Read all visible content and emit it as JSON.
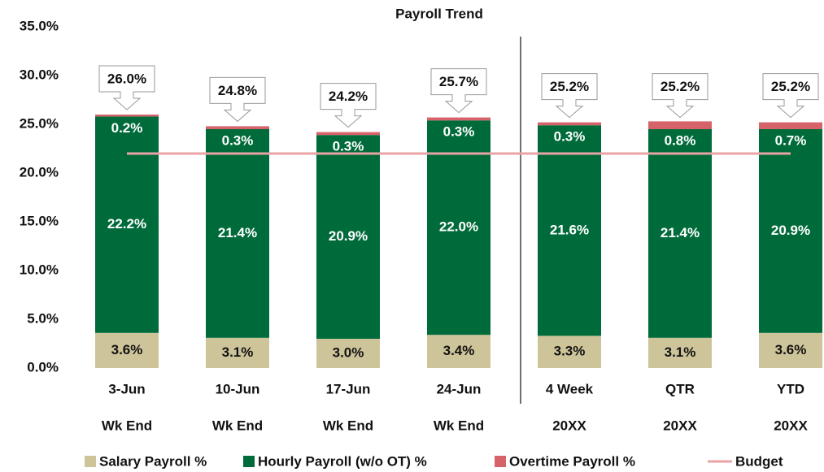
{
  "chart_data": {
    "type": "stacked_bar",
    "title": "Payroll Trend",
    "categories": [
      "3-Jun",
      "10-Jun",
      "17-Jun",
      "24-Jun",
      "4 Week",
      "QTR",
      "YTD"
    ],
    "category_sublabels": [
      "Wk End",
      "Wk End",
      "Wk End",
      "Wk End",
      "20XX",
      "20XX",
      "20XX"
    ],
    "series": [
      {
        "name": "Salary Payroll %",
        "color": "#cec49a",
        "values": [
          3.6,
          3.1,
          3.0,
          3.4,
          3.3,
          3.1,
          3.6
        ],
        "value_labels": [
          "3.6%",
          "3.1%",
          "3.0%",
          "3.4%",
          "3.3%",
          "3.1%",
          "3.6%"
        ]
      },
      {
        "name": "Hourly Payroll (w/o OT) %",
        "color": "#006b3a",
        "values": [
          22.2,
          21.4,
          20.9,
          22.0,
          21.6,
          21.4,
          20.9
        ],
        "value_labels": [
          "22.2%",
          "21.4%",
          "20.9%",
          "22.0%",
          "21.6%",
          "21.4%",
          "20.9%"
        ]
      },
      {
        "name": "Overtime Payroll %",
        "color": "#d6636a",
        "values": [
          0.2,
          0.3,
          0.3,
          0.3,
          0.3,
          0.8,
          0.7
        ],
        "value_labels": [
          "0.2%",
          "0.3%",
          "0.3%",
          "0.3%",
          "0.3%",
          "0.8%",
          "0.7%"
        ]
      }
    ],
    "totals": [
      26.0,
      24.8,
      24.2,
      25.7,
      25.2,
      25.2,
      25.2
    ],
    "total_labels": [
      "26.0%",
      "24.8%",
      "24.2%",
      "25.7%",
      "25.2%",
      "25.2%",
      "25.2%"
    ],
    "budget": {
      "name": "Budget",
      "color": "#e8a3a6",
      "values": [
        22.0,
        22.0,
        22.0,
        22.0,
        22.0,
        22.0,
        22.0
      ]
    },
    "ylim": [
      0,
      35
    ],
    "yticks": [
      {
        "value": 0,
        "label": "0.0%"
      },
      {
        "value": 5,
        "label": "5.0%"
      },
      {
        "value": 10,
        "label": "10.0%"
      },
      {
        "value": 15,
        "label": "15.0%"
      },
      {
        "value": 20,
        "label": "20.0%"
      },
      {
        "value": 25,
        "label": "25.0%"
      },
      {
        "value": 30,
        "label": "30.0%"
      },
      {
        "value": 35,
        "label": "35.0%"
      }
    ],
    "grid": false
  }
}
